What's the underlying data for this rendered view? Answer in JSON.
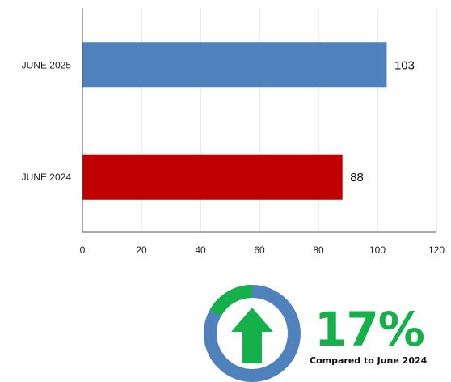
{
  "chart_data": {
    "type": "bar",
    "orientation": "horizontal",
    "categories": [
      "JUNE 2025",
      "JUNE 2024"
    ],
    "values": [
      103,
      88
    ],
    "data_labels": [
      "103",
      "88"
    ],
    "xlim": [
      0,
      120
    ],
    "xticks": [
      0,
      20,
      40,
      60,
      80,
      100,
      120
    ],
    "grid": true,
    "colors": [
      "#4f81bd",
      "#c00000"
    ]
  },
  "kpi": {
    "percent_label": "17%",
    "caption": "Compared to June 2024",
    "percent_value": 17,
    "direction": "up",
    "icon": "up-arrow-icon",
    "ring_color": "#4f81bd",
    "segment_color": "#16b04a",
    "arrow_color": "#16b04a"
  }
}
